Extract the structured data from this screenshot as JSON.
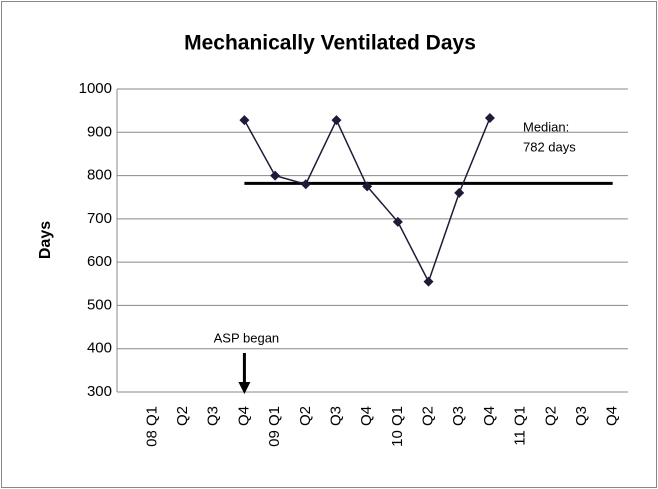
{
  "chart_data": {
    "type": "line",
    "title": "Mechanically Ventilated Days",
    "y_label": "Days",
    "categories": [
      "08 Q1",
      "Q2",
      "Q3",
      "Q4",
      "09 Q1",
      "Q2",
      "Q3",
      "Q4",
      "10 Q1",
      "Q2",
      "Q3",
      "Q4",
      "11 Q1",
      "Q2",
      "Q3",
      "Q4"
    ],
    "series": [
      {
        "name": "Mechanically Ventilated Days",
        "color": "#1c1c38",
        "values": [
          null,
          null,
          null,
          928,
          800,
          780,
          928,
          775,
          693,
          555,
          760,
          933,
          null,
          null,
          null,
          null
        ]
      }
    ],
    "median": 782,
    "median_label": [
      "Median:",
      "782 days"
    ],
    "annotation": "ASP began",
    "ylim": [
      300,
      1000
    ],
    "yticks": [
      300,
      400,
      500,
      600,
      700,
      800,
      900,
      1000
    ],
    "grid": true
  }
}
